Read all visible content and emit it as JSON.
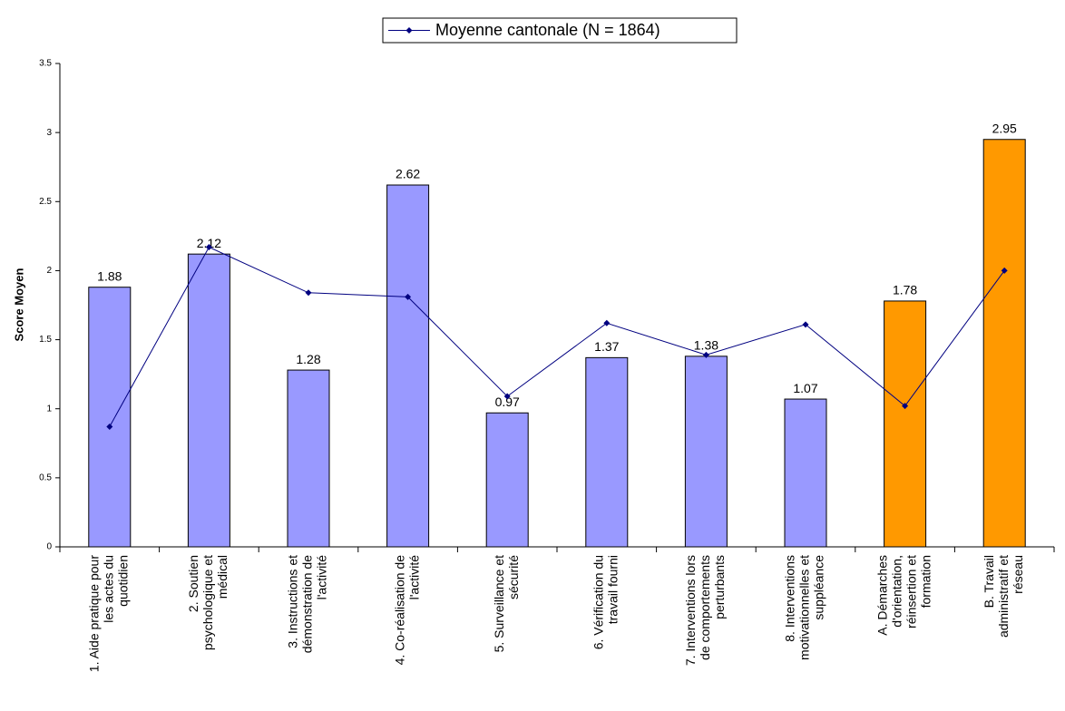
{
  "chart_data": {
    "type": "bar",
    "y_label": "Score Moyen",
    "categories": [
      [
        "1. Aide pratique pour",
        "les actes du",
        "quotidien"
      ],
      [
        "2. Soutien",
        "psychologique et",
        "médical"
      ],
      [
        "3. Instructions et",
        "démonstration de",
        "l'activité"
      ],
      [
        "4. Co-réalisation de",
        "l'activité"
      ],
      [
        "5. Surveillance et",
        "sécurité"
      ],
      [
        "6. Vérification du",
        "travail fourni"
      ],
      [
        "7. Interventions lors",
        "de comportements",
        "perturbants"
      ],
      [
        "8. Interventions",
        "motivationnelles et",
        "suppléance"
      ],
      [
        "A. Démarches",
        "d'orientation,",
        "réinsertion et",
        "formation"
      ],
      [
        "B. Travail",
        "administratif et",
        "réseau"
      ]
    ],
    "values": [
      1.88,
      2.12,
      1.28,
      2.62,
      0.97,
      1.37,
      1.38,
      1.07,
      1.78,
      2.95
    ],
    "colors": [
      "#9999ff",
      "#9999ff",
      "#9999ff",
      "#9999ff",
      "#9999ff",
      "#9999ff",
      "#9999ff",
      "#9999ff",
      "#ff9900",
      "#ff9900"
    ],
    "series": [
      {
        "name": "Moyenne cantonale (N = 1864)",
        "type": "line",
        "color": "#000080",
        "values": [
          0.87,
          2.17,
          1.84,
          1.81,
          1.09,
          1.62,
          1.39,
          1.61,
          1.02,
          2.0
        ]
      }
    ],
    "ylim": [
      0,
      3.5
    ],
    "yticks": [
      0,
      0.5,
      1,
      1.5,
      2,
      2.5,
      3,
      3.5
    ],
    "legend": "top"
  }
}
